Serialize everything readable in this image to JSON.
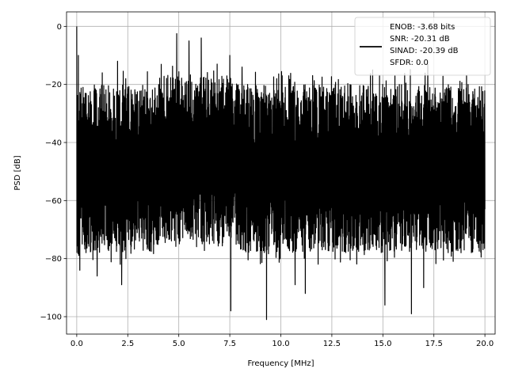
{
  "chart_data": {
    "type": "line",
    "title": "",
    "xlabel": "Frequency [MHz]",
    "ylabel": "PSD [dB]",
    "xlim": [
      -0.5,
      20.5
    ],
    "ylim": [
      -106,
      5
    ],
    "xticks": [
      0.0,
      2.5,
      5.0,
      7.5,
      10.0,
      12.5,
      15.0,
      17.5,
      20.0
    ],
    "xtick_labels": [
      "0.0",
      "2.5",
      "5.0",
      "7.5",
      "10.0",
      "12.5",
      "15.0",
      "17.5",
      "20.0"
    ],
    "yticks": [
      0,
      -20,
      -40,
      -60,
      -80,
      -100
    ],
    "ytick_labels": [
      "0",
      "−20",
      "−40",
      "−60",
      "−80",
      "−100"
    ],
    "grid": true,
    "legend_position": "top-right",
    "series": [
      {
        "name": "ENOB: -3.68 bits\nSNR: -20.31 dB\nSINAD: -20.39 dB\nSFDR: 0.0",
        "color": "#000000",
        "x_range": [
          0,
          20
        ],
        "notes": "dense noise floor, mostly between -75 and -25 dB, with isolated spikes",
        "spikes": [
          {
            "x": 0.0,
            "y": 0.0
          },
          {
            "x": 0.08,
            "y": -10.0
          },
          {
            "x": 1.25,
            "y": -16.0
          },
          {
            "x": 2.0,
            "y": -12.0
          },
          {
            "x": 2.4,
            "y": -18.0
          },
          {
            "x": 4.9,
            "y": -2.5
          },
          {
            "x": 5.5,
            "y": -5.0
          },
          {
            "x": 6.1,
            "y": -4.0
          },
          {
            "x": 7.5,
            "y": -10.0
          },
          {
            "x": 8.1,
            "y": -14.0
          },
          {
            "x": 9.8,
            "y": -18.0
          },
          {
            "x": 14.5,
            "y": -15.0
          },
          {
            "x": 17.2,
            "y": -13.0
          },
          {
            "x": 19.1,
            "y": -17.0
          }
        ],
        "dips": [
          {
            "x": 0.15,
            "y": -84.0
          },
          {
            "x": 1.0,
            "y": -86.0
          },
          {
            "x": 2.2,
            "y": -89.0
          },
          {
            "x": 7.55,
            "y": -98.0
          },
          {
            "x": 9.3,
            "y": -101.0
          },
          {
            "x": 10.7,
            "y": -89.0
          },
          {
            "x": 11.2,
            "y": -92.0
          },
          {
            "x": 15.1,
            "y": -96.0
          },
          {
            "x": 16.4,
            "y": -99.0
          },
          {
            "x": 17.0,
            "y": -90.0
          }
        ]
      }
    ]
  }
}
